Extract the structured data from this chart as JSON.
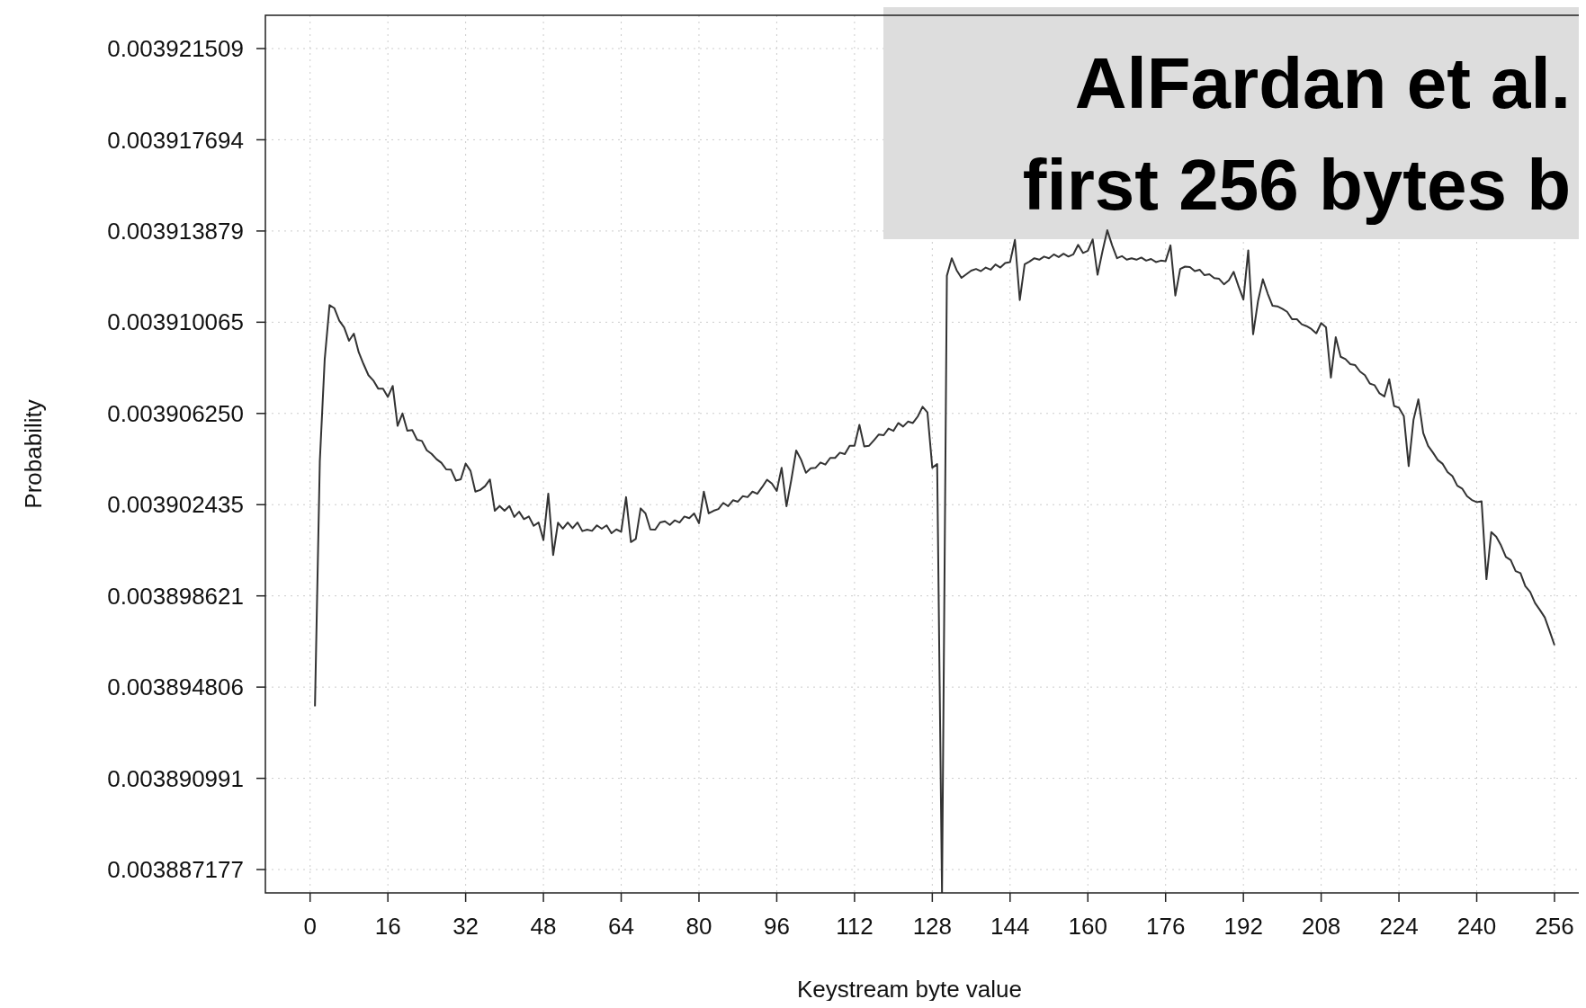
{
  "chart_data": {
    "type": "line",
    "title": "AlFardan et al.",
    "subtitle": "first 256 bytes b",
    "xlabel": "Keystream byte value",
    "ylabel": "Probability",
    "xlim": [
      -9.2,
      261
    ],
    "ylim": [
      0.0038862,
      0.0039229
    ],
    "xticks": [
      0,
      16,
      32,
      48,
      64,
      80,
      96,
      112,
      128,
      144,
      160,
      176,
      192,
      208,
      224,
      240,
      256
    ],
    "yticks": [
      {
        "value": 0.003887177,
        "label": "0.003887177"
      },
      {
        "value": 0.003890991,
        "label": "0.003890991"
      },
      {
        "value": 0.003894806,
        "label": "0.003894806"
      },
      {
        "value": 0.003898621,
        "label": "0.003898621"
      },
      {
        "value": 0.003902435,
        "label": "0.003902435"
      },
      {
        "value": 0.00390625,
        "label": "0.003906250"
      },
      {
        "value": 0.003910065,
        "label": "0.003910065"
      },
      {
        "value": 0.003913879,
        "label": "0.003913879"
      },
      {
        "value": 0.003917694,
        "label": "0.003917694"
      },
      {
        "value": 0.003921509,
        "label": "0.003921509"
      }
    ],
    "grid": true,
    "marker": "none",
    "line_style": "solid",
    "series": [
      {
        "color": "#333333",
        "x": [
          1,
          2,
          3,
          4,
          5,
          6,
          7,
          8,
          9,
          10,
          11,
          12,
          13,
          14,
          15,
          16,
          17,
          18,
          19,
          20,
          21,
          22,
          23,
          24,
          25,
          26,
          27,
          28,
          29,
          30,
          31,
          32,
          33,
          34,
          35,
          36,
          37,
          38,
          39,
          40,
          41,
          42,
          43,
          44,
          45,
          46,
          47,
          48,
          49,
          50,
          51,
          52,
          53,
          54,
          55,
          56,
          57,
          58,
          59,
          60,
          61,
          62,
          63,
          64,
          65,
          66,
          67,
          68,
          69,
          70,
          71,
          72,
          73,
          74,
          75,
          76,
          77,
          78,
          79,
          80,
          81,
          82,
          83,
          84,
          85,
          86,
          87,
          88,
          89,
          90,
          91,
          92,
          93,
          94,
          95,
          96,
          97,
          98,
          99,
          100,
          101,
          102,
          103,
          104,
          105,
          106,
          107,
          108,
          109,
          110,
          111,
          112,
          113,
          114,
          115,
          116,
          117,
          118,
          119,
          120,
          121,
          122,
          123,
          124,
          125,
          126,
          127,
          128,
          129,
          130,
          131,
          132,
          133,
          134,
          135,
          136,
          137,
          138,
          139,
          140,
          141,
          142,
          143,
          144,
          145,
          146,
          147,
          148,
          149,
          150,
          151,
          152,
          153,
          154,
          155,
          156,
          157,
          158,
          159,
          160,
          161,
          162,
          163,
          164,
          165,
          166,
          167,
          168,
          169,
          170,
          171,
          172,
          173,
          174,
          175,
          176,
          177,
          178,
          179,
          180,
          181,
          182,
          183,
          184,
          185,
          186,
          187,
          188,
          189,
          190,
          191,
          192,
          193,
          194,
          195,
          196,
          197,
          198,
          199,
          200,
          201,
          202,
          203,
          204,
          205,
          206,
          207,
          208,
          209,
          210,
          211,
          212,
          213,
          214,
          215,
          216,
          217,
          218,
          219,
          220,
          221,
          222,
          223,
          224,
          225,
          226,
          227,
          228,
          229,
          230,
          231,
          232,
          233,
          234,
          235,
          236,
          237,
          238,
          239,
          240,
          241,
          242,
          243,
          244,
          245,
          246,
          247,
          248,
          249,
          250,
          251,
          252,
          253,
          254,
          255,
          256
        ],
        "values": [
          0.003894,
          0.00390425,
          0.0039085,
          0.00391078,
          0.00391065,
          0.00391013,
          0.00390985,
          0.00390929,
          0.00390959,
          0.00390881,
          0.00390831,
          0.00390785,
          0.00390763,
          0.00390729,
          0.00390729,
          0.00390694,
          0.0039074,
          0.00390573,
          0.00390625,
          0.00390553,
          0.00390556,
          0.00390515,
          0.0039051,
          0.00390471,
          0.00390456,
          0.00390434,
          0.00390419,
          0.00390391,
          0.0039039,
          0.00390344,
          0.0039035,
          0.00390415,
          0.00390385,
          0.00390298,
          0.00390305,
          0.00390321,
          0.00390349,
          0.00390218,
          0.00390238,
          0.00390218,
          0.00390238,
          0.00390192,
          0.00390214,
          0.00390183,
          0.00390194,
          0.00390155,
          0.00390169,
          0.00390095,
          0.0039029,
          0.00390033,
          0.00390168,
          0.00390143,
          0.00390169,
          0.00390145,
          0.00390169,
          0.00390133,
          0.00390139,
          0.00390134,
          0.00390157,
          0.00390143,
          0.00390157,
          0.00390124,
          0.0039014,
          0.0039013,
          0.00390275,
          0.00390087,
          0.003901,
          0.00390228,
          0.00390207,
          0.0039014,
          0.00390139,
          0.00390169,
          0.00390174,
          0.00390159,
          0.00390178,
          0.00390169,
          0.00390194,
          0.00390187,
          0.00390207,
          0.00390166,
          0.00390298,
          0.00390207,
          0.00390218,
          0.00390225,
          0.00390251,
          0.00390237,
          0.00390262,
          0.00390256,
          0.00390279,
          0.00390275,
          0.00390298,
          0.00390289,
          0.00390317,
          0.00390348,
          0.00390332,
          0.00390301,
          0.00390398,
          0.00390237,
          0.00390348,
          0.0039047,
          0.00390432,
          0.00390377,
          0.00390396,
          0.00390398,
          0.0039042,
          0.00390411,
          0.00390439,
          0.00390439,
          0.00390461,
          0.00390455,
          0.0039049,
          0.0039049,
          0.00390577,
          0.00390487,
          0.0039049,
          0.00390513,
          0.00390537,
          0.00390534,
          0.00390562,
          0.00390552,
          0.00390585,
          0.0039057,
          0.00390591,
          0.00390585,
          0.00390612,
          0.00390653,
          0.00390629,
          0.00390398,
          0.00390413,
          0.0038862,
          0.00391201,
          0.00391274,
          0.00391224,
          0.00391192,
          0.00391207,
          0.00391222,
          0.00391229,
          0.0039122,
          0.00391235,
          0.00391226,
          0.00391248,
          0.00391235,
          0.00391254,
          0.00391258,
          0.00391351,
          0.00391099,
          0.00391249,
          0.0039126,
          0.00391274,
          0.00391268,
          0.00391281,
          0.00391274,
          0.0039129,
          0.00391279,
          0.00391293,
          0.00391281,
          0.0039129,
          0.0039133,
          0.00391296,
          0.00391305,
          0.00391353,
          0.00391205,
          0.00391302,
          0.00391391,
          0.00391328,
          0.00391274,
          0.00391283,
          0.00391268,
          0.00391274,
          0.00391268,
          0.00391277,
          0.00391264,
          0.00391271,
          0.00391258,
          0.00391264,
          0.00391262,
          0.00391328,
          0.00391118,
          0.00391229,
          0.00391239,
          0.00391237,
          0.0039122,
          0.00391226,
          0.00391203,
          0.00391207,
          0.00391191,
          0.00391188,
          0.00391165,
          0.00391182,
          0.00391217,
          0.00391157,
          0.00391101,
          0.00391307,
          0.00390956,
          0.00391094,
          0.00391186,
          0.00391126,
          0.00391075,
          0.00391073,
          0.00391063,
          0.0039105,
          0.00391019,
          0.00391019,
          0.00390998,
          0.0039099,
          0.00390978,
          0.0039096,
          0.00391003,
          0.00390985,
          0.00390775,
          0.00390944,
          0.00390862,
          0.00390852,
          0.00390831,
          0.00390827,
          0.003908,
          0.00390785,
          0.0039075,
          0.00390743,
          0.00390709,
          0.00390696,
          0.00390768,
          0.00390656,
          0.00390649,
          0.00390614,
          0.00390405,
          0.00390599,
          0.00390684,
          0.00390543,
          0.00390489,
          0.00390461,
          0.0039043,
          0.00390414,
          0.0039038,
          0.00390363,
          0.00390323,
          0.00390311,
          0.00390279,
          0.00390263,
          0.00390254,
          0.00390258,
          0.00389932,
          0.00390129,
          0.0039011,
          0.00390073,
          0.00390025,
          0.00390012,
          0.00389966,
          0.00389957,
          0.00389903,
          0.00389878,
          0.00389832,
          0.00389803,
          0.00389772,
          0.00389715,
          0.00389656
        ]
      }
    ]
  }
}
